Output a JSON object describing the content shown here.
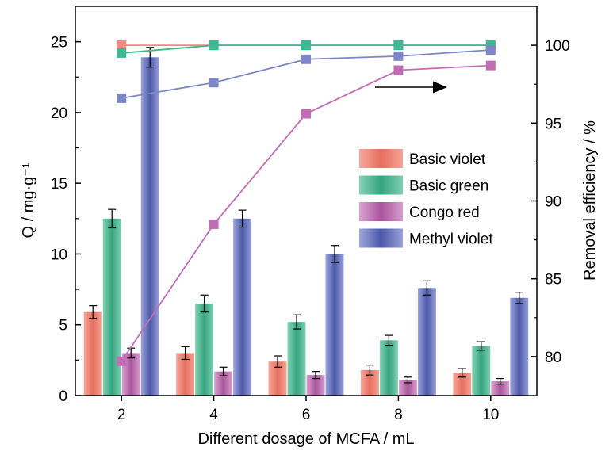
{
  "chart_data": {
    "type": "bar",
    "xlabel": "Different dosage of MCFA / mL",
    "ylabel_left": "Q / mg·g⁻¹",
    "ylabel_right": "Removal efficiency / %",
    "categories": [
      "2",
      "4",
      "6",
      "8",
      "10"
    ],
    "ylim_left": [
      0,
      27.5
    ],
    "yticks_left": [
      "0",
      "5",
      "10",
      "15",
      "20",
      "25"
    ],
    "ylim_right": [
      77.5,
      102.5
    ],
    "yticks_right": [
      "80",
      "85",
      "90",
      "95",
      "100"
    ],
    "bar_series": [
      {
        "name": "Basic violet",
        "color": "#e87a6a",
        "values": [
          5.9,
          3.0,
          2.4,
          1.8,
          1.6
        ],
        "errors": [
          0.45,
          0.45,
          0.4,
          0.35,
          0.3
        ]
      },
      {
        "name": "Basic green",
        "color": "#3fb28c",
        "values": [
          12.5,
          6.5,
          5.2,
          3.9,
          3.5
        ],
        "errors": [
          0.65,
          0.6,
          0.5,
          0.35,
          0.3
        ]
      },
      {
        "name": "Congo red",
        "color": "#b764a8",
        "values": [
          3.0,
          1.7,
          1.45,
          1.1,
          1.0
        ],
        "errors": [
          0.35,
          0.3,
          0.25,
          0.2,
          0.2
        ]
      },
      {
        "name": "Methyl violet",
        "color": "#5b66b5",
        "values": [
          23.9,
          12.5,
          10.0,
          7.6,
          6.9
        ],
        "errors": [
          0.7,
          0.6,
          0.6,
          0.5,
          0.4
        ]
      }
    ],
    "line_series": [
      {
        "name": "Basic violet",
        "color": "#f2897c",
        "values": [
          100.0,
          100.0,
          100.0,
          100.0,
          100.0
        ]
      },
      {
        "name": "Basic green",
        "color": "#3cb893",
        "values": [
          99.5,
          100.0,
          100.0,
          100.0,
          100.0
        ]
      },
      {
        "name": "Congo red",
        "color": "#c26cb5",
        "values": [
          79.7,
          88.5,
          95.6,
          98.4,
          98.7
        ]
      },
      {
        "name": "Methyl violet",
        "color": "#7d86c6",
        "values": [
          96.6,
          97.6,
          99.1,
          99.3,
          99.7
        ]
      }
    ],
    "annotation": {
      "type": "arrow",
      "direction": "right",
      "meaning": "line series read on right axis"
    },
    "legend_position": "center-right",
    "grid": false
  }
}
